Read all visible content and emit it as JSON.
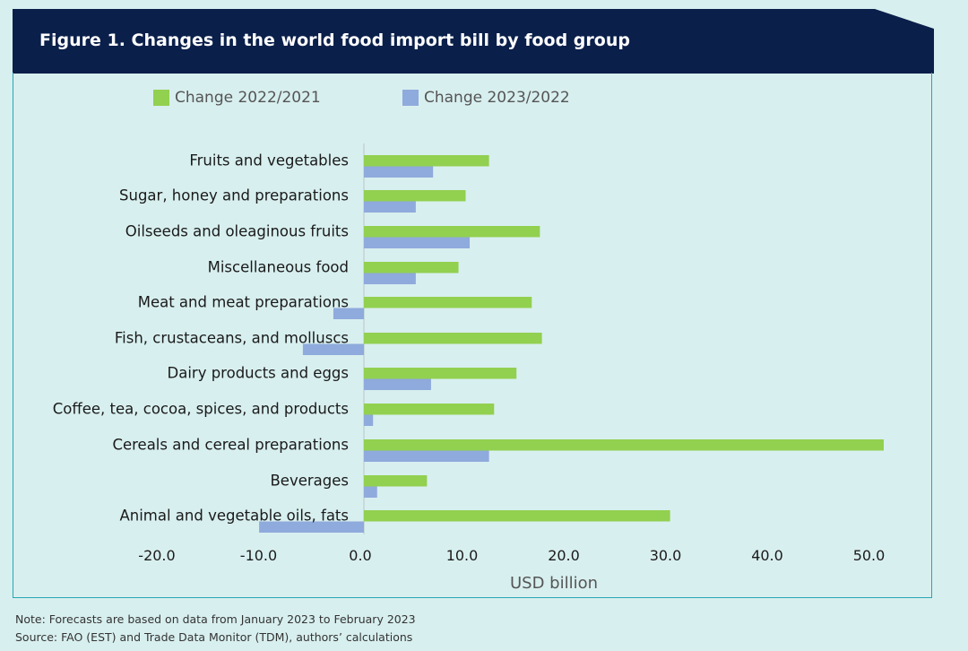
{
  "header": {
    "title": "Figure 1. Changes in the world food import bill by food group"
  },
  "colors": {
    "header_bg": "#0a1f4a",
    "frame": "#27a7b0",
    "series1": "#92d050",
    "series2": "#8faadc",
    "background": "#d8efef"
  },
  "chart_data": {
    "type": "bar",
    "orientation": "horizontal",
    "title": "Figure 1. Changes in the world food import bill by food group",
    "xlabel": "USD billion",
    "ylabel": "",
    "xlim": [
      -20,
      52
    ],
    "x_ticks": [
      "-20.0",
      "-10.0",
      "0.0",
      "10.0",
      "20.0",
      "30.0",
      "40.0",
      "50.0"
    ],
    "legend_position": "top",
    "grid": false,
    "categories": [
      "Fruits and vegetables",
      "Sugar, honey and preparations",
      "Oilseeds and oleaginous fruits",
      "Miscellaneous food",
      "Meat and meat preparations",
      "Fish, crustaceans, and molluscs",
      "Dairy products and eggs",
      "Coffee, tea, cocoa, spices, and products",
      "Cereals and cereal preparations",
      "Beverages",
      "Animal and vegetable oils, fats"
    ],
    "series": [
      {
        "name": "Change 2022/2021",
        "color": "#92d050",
        "values": [
          12.3,
          10.0,
          17.3,
          9.3,
          16.5,
          17.5,
          15.0,
          12.8,
          51.1,
          6.2,
          30.1
        ]
      },
      {
        "name": "Change 2023/2022",
        "color": "#8faadc",
        "values": [
          6.8,
          5.1,
          10.4,
          5.1,
          -3.0,
          -6.0,
          6.6,
          0.9,
          12.3,
          1.3,
          -10.3
        ]
      }
    ]
  },
  "notes": {
    "line1": "Note: Forecasts are based on data from January 2023 to February 2023",
    "line2": "Source: FAO (EST) and Trade Data Monitor (TDM), authors’ calculations"
  }
}
